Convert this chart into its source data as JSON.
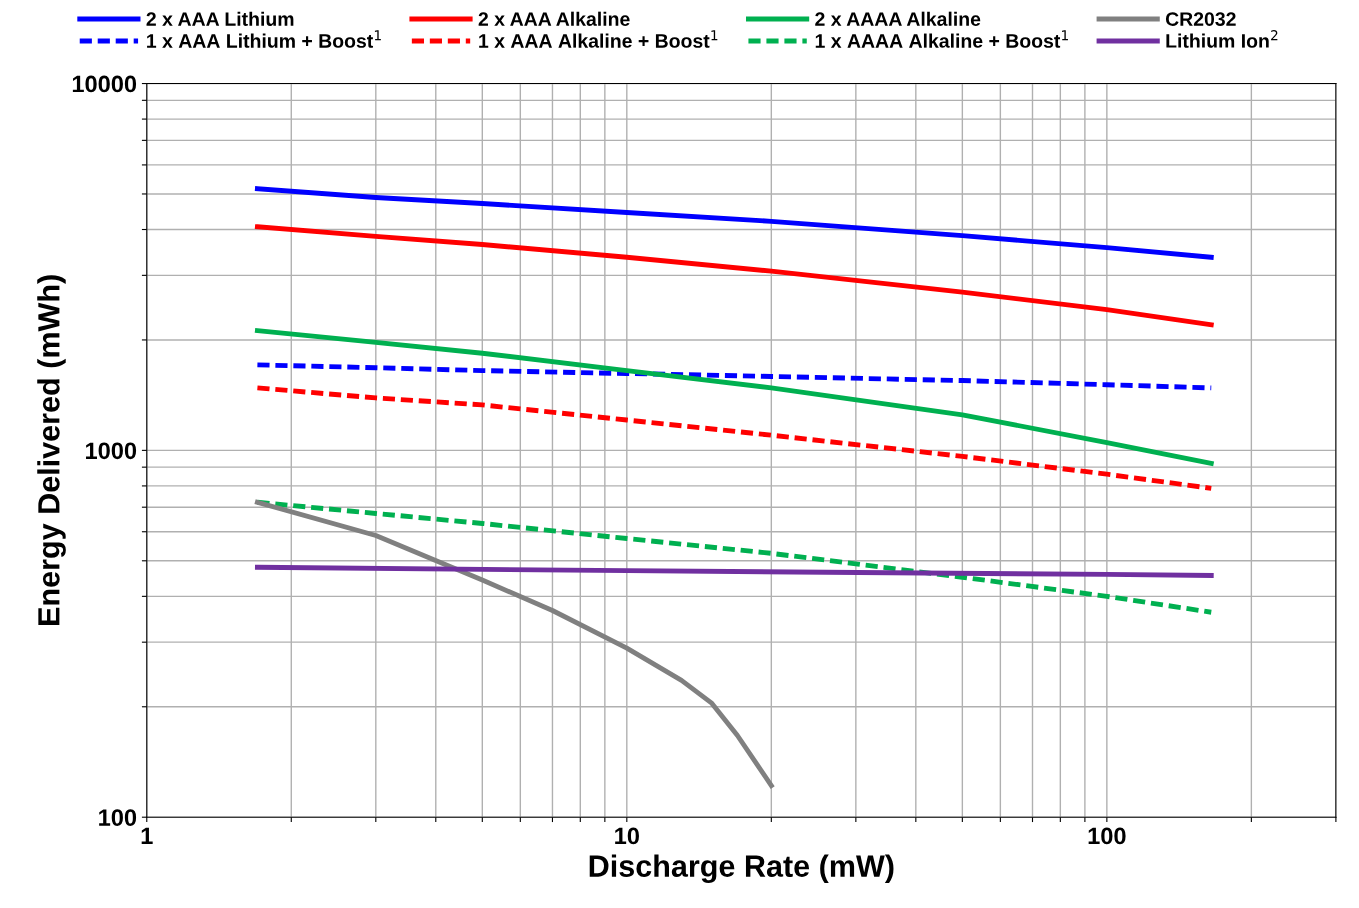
{
  "chart_data": {
    "type": "line",
    "xlabel": "Discharge Rate (mW)",
    "ylabel": "Energy Delivered (mWh)",
    "log": "xy",
    "grid": true,
    "legend": "top",
    "marker": "none",
    "xlim": [
      1,
      300
    ],
    "ylim": [
      100,
      10000
    ],
    "xticks": [
      1,
      {
        "value": 2,
        "label": null
      },
      {
        "value": 3,
        "label": null
      },
      {
        "value": 4,
        "label": null
      },
      {
        "value": 5,
        "label": null
      },
      {
        "value": 6,
        "label": null
      },
      {
        "value": 7,
        "label": null
      },
      {
        "value": 8,
        "label": null
      },
      {
        "value": 9,
        "label": null
      },
      10,
      {
        "value": 20,
        "label": null
      },
      {
        "value": 30,
        "label": null
      },
      {
        "value": 40,
        "label": null
      },
      {
        "value": 50,
        "label": null
      },
      {
        "value": 60,
        "label": null
      },
      {
        "value": 70,
        "label": null
      },
      {
        "value": 80,
        "label": null
      },
      {
        "value": 90,
        "label": null
      },
      100,
      {
        "value": 200,
        "label": null
      },
      {
        "value": 300,
        "label": null
      }
    ],
    "yticks": [
      100,
      {
        "value": 200,
        "label": null
      },
      {
        "value": 300,
        "label": null
      },
      {
        "value": 400,
        "label": null
      },
      {
        "value": 500,
        "label": null
      },
      {
        "value": 600,
        "label": null
      },
      {
        "value": 700,
        "label": null
      },
      {
        "value": 800,
        "label": null
      },
      {
        "value": 900,
        "label": null
      },
      1000,
      {
        "value": 2000,
        "label": null
      },
      {
        "value": 3000,
        "label": null
      },
      {
        "value": 4000,
        "label": null
      },
      {
        "value": 5000,
        "label": null
      },
      {
        "value": 6000,
        "label": null
      },
      {
        "value": 7000,
        "label": null
      },
      {
        "value": 8000,
        "label": null
      },
      {
        "value": 9000,
        "label": null
      },
      10000
    ],
    "series": [
      {
        "name": "2 x AAA Lithium",
        "color": "#0000ff",
        "line_style": "solid",
        "x": [
          1.7,
          3,
          5,
          10,
          20,
          50,
          100,
          165
        ],
        "values": [
          5170,
          4890,
          4710,
          4450,
          4210,
          3850,
          3570,
          3360
        ]
      },
      {
        "name": "1 x AAA Lithium + Boost$^{1}$",
        "color": "#0000ff",
        "line_style": "dashed",
        "x": [
          1.7,
          3,
          5,
          10,
          20,
          50,
          100,
          165
        ],
        "values": [
          1710,
          1680,
          1650,
          1620,
          1590,
          1550,
          1510,
          1480
        ]
      },
      {
        "name": "2 x AAA Alkaline",
        "color": "#ff0000",
        "line_style": "solid",
        "x": [
          1.7,
          3,
          5,
          10,
          20,
          50,
          100,
          165
        ],
        "values": [
          4070,
          3830,
          3640,
          3360,
          3080,
          2700,
          2420,
          2200
        ]
      },
      {
        "name": "1 x AAA Alkaline + Boost$^{1}$",
        "color": "#ff0000",
        "line_style": "dashed",
        "x": [
          1.7,
          3,
          5,
          10,
          20,
          50,
          100,
          165
        ],
        "values": [
          1480,
          1390,
          1330,
          1210,
          1100,
          963,
          861,
          788
        ]
      },
      {
        "name": "2 x AAAA Alkaline",
        "color": "#00b050",
        "line_style": "solid",
        "x": [
          1.7,
          3,
          5,
          10,
          20,
          50,
          100,
          165
        ],
        "values": [
          2120,
          1970,
          1840,
          1650,
          1480,
          1250,
          1050,
          922
        ]
      },
      {
        "name": "1 x AAAA Alkaline + Boost$^{1}$",
        "color": "#00b050",
        "line_style": "dashed",
        "x": [
          1.7,
          3,
          5,
          10,
          20,
          50,
          100,
          165
        ],
        "values": [
          722,
          673,
          632,
          575,
          524,
          451,
          400,
          362
        ]
      },
      {
        "name": "CR2032",
        "color": "#808080",
        "line_style": "solid",
        "x": [
          1.7,
          3,
          5,
          7,
          10,
          13,
          15,
          17,
          20
        ],
        "values": [
          722,
          586,
          443,
          366,
          289,
          236,
          205,
          167,
          122
        ]
      },
      {
        "name": "Lithium Ion$^{2}$",
        "color": "#7030a0",
        "line_style": "solid",
        "x": [
          1.7,
          10,
          100,
          165
        ],
        "values": [
          480,
          470,
          459,
          456
        ]
      }
    ]
  }
}
